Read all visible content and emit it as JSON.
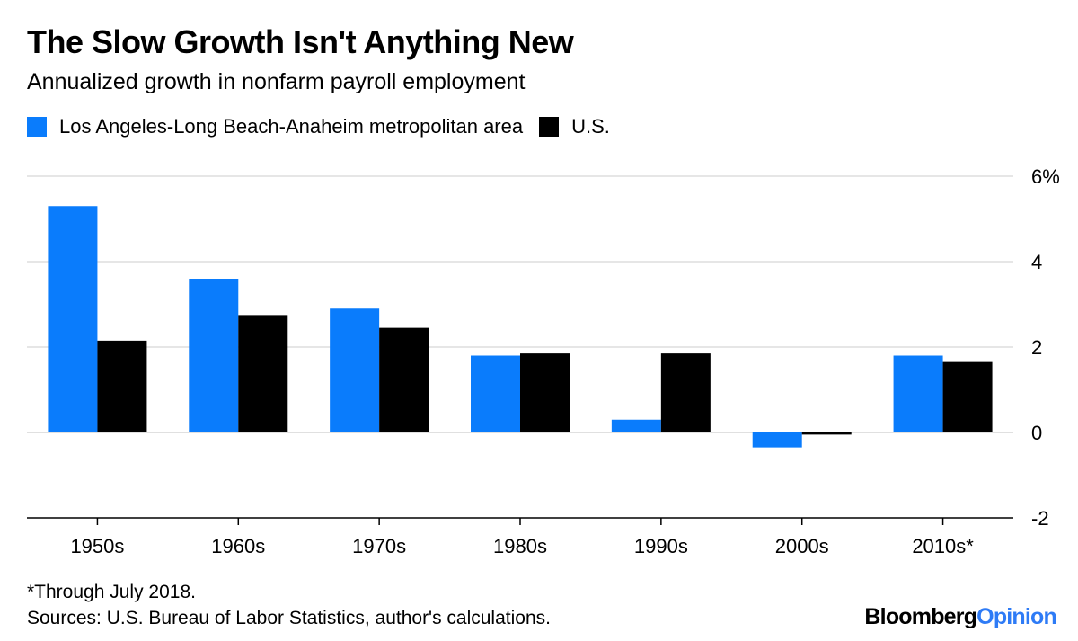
{
  "colors": {
    "la": "#0a7cfc",
    "us": "#000000",
    "grid": "#e6e6e6",
    "axis": "#000000",
    "brand_accent": "#2e7bf6"
  },
  "chart_data": {
    "type": "bar",
    "title": "The Slow Growth Isn't Anything New",
    "subtitle": "Annualized growth in nonfarm payroll employment",
    "categories": [
      "1950s",
      "1960s",
      "1970s",
      "1980s",
      "1990s",
      "2000s",
      "2010s*"
    ],
    "series": [
      {
        "name": "Los Angeles-Long Beach-Anaheim metropolitan area",
        "color": "#0a7cfc",
        "values": [
          5.3,
          3.6,
          2.9,
          1.8,
          0.3,
          -0.35,
          1.8
        ]
      },
      {
        "name": "U.S.",
        "color": "#000000",
        "values": [
          2.15,
          2.75,
          2.45,
          1.85,
          1.85,
          -0.05,
          1.65
        ]
      }
    ],
    "ylim": [
      -2,
      6
    ],
    "yticks": [
      {
        "value": 6,
        "label": "6%"
      },
      {
        "value": 4,
        "label": "4"
      },
      {
        "value": 2,
        "label": "2"
      },
      {
        "value": 0,
        "label": "0"
      },
      {
        "value": -2,
        "label": "-2"
      }
    ],
    "grid": true,
    "legend_position": "top-left",
    "xlabel": "",
    "ylabel": ""
  },
  "footer": {
    "note": "*Through July 2018.",
    "source": "Sources: U.S. Bureau of Labor Statistics, author's calculations.",
    "brand_bloomberg": "Bloomberg",
    "brand_opinion": "Opinion"
  }
}
